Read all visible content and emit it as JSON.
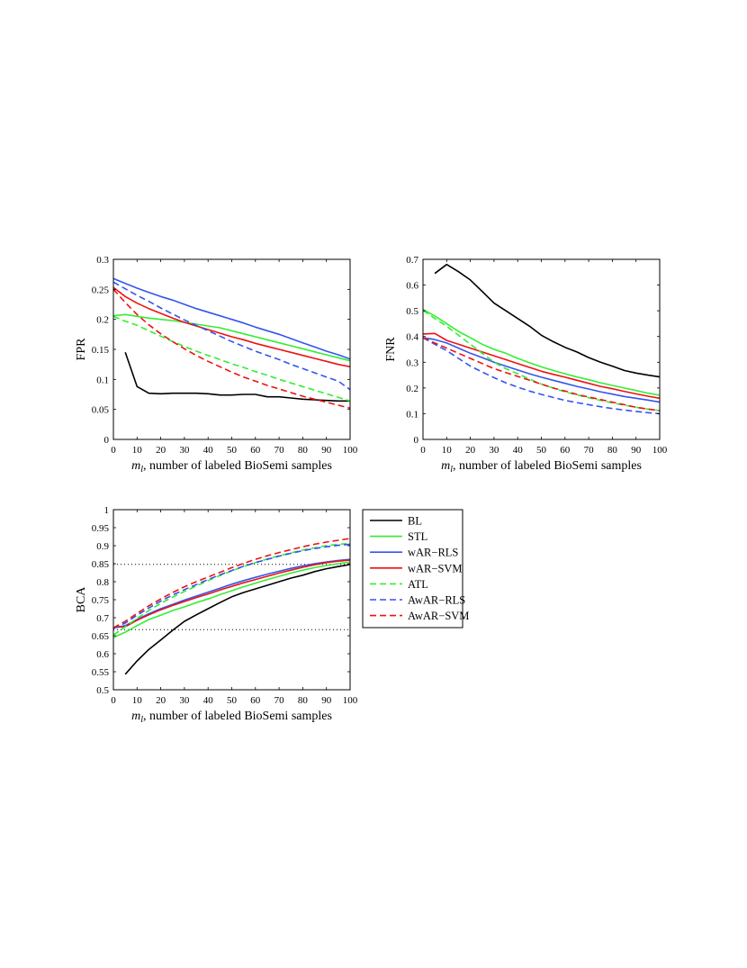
{
  "figure": {
    "colors": {
      "BL": "#000000",
      "STL": "#33ee33",
      "wAR-RLS": "#3355ee",
      "wAR-SVM": "#ee1111",
      "ATL": "#33ee33",
      "AwAR-RLS": "#3355ee",
      "AwAR-SVM": "#ee1111"
    },
    "legend": {
      "entries": [
        {
          "label": "BL",
          "style": "solid"
        },
        {
          "label": "STL",
          "style": "solid"
        },
        {
          "label": "wAR−RLS",
          "style": "solid"
        },
        {
          "label": "wAR−SVM",
          "style": "solid"
        },
        {
          "label": "ATL",
          "style": "dashed"
        },
        {
          "label": "AwAR−RLS",
          "style": "dashed"
        },
        {
          "label": "AwAR−SVM",
          "style": "dashed"
        }
      ]
    }
  },
  "chart_data": [
    {
      "type": "line",
      "title": "",
      "xlabel_var": "m",
      "xlabel_sub": "l",
      "xlabel_rest": ", number of labeled BioSemi samples",
      "ylabel": "FPR",
      "xlim": [
        0,
        100
      ],
      "ylim": [
        0,
        0.3
      ],
      "xticks": [
        0,
        10,
        20,
        30,
        40,
        50,
        60,
        70,
        80,
        90,
        100
      ],
      "yticks": [
        0,
        0.05,
        0.1,
        0.15,
        0.2,
        0.25,
        0.3
      ],
      "ytick_labels": [
        "0",
        "0.05",
        "0.1",
        "0.15",
        "0.2",
        "0.25",
        "0.3"
      ],
      "x": [
        0,
        5,
        10,
        15,
        20,
        25,
        30,
        35,
        40,
        45,
        50,
        55,
        60,
        65,
        70,
        75,
        80,
        85,
        90,
        95,
        100
      ],
      "series": [
        {
          "name": "BL",
          "key": "BL",
          "dashed": false,
          "x": [
            5,
            10,
            15,
            20,
            25,
            30,
            35,
            40,
            45,
            50,
            55,
            60,
            65,
            70,
            75,
            80,
            85,
            90,
            95,
            100
          ],
          "values": [
            0.145,
            0.088,
            0.077,
            0.076,
            0.077,
            0.077,
            0.077,
            0.076,
            0.074,
            0.074,
            0.075,
            0.075,
            0.071,
            0.071,
            0.069,
            0.067,
            0.066,
            0.065,
            0.064,
            0.064
          ]
        },
        {
          "name": "STL",
          "key": "STL",
          "dashed": false,
          "values": [
            0.206,
            0.208,
            0.205,
            0.202,
            0.2,
            0.198,
            0.195,
            0.192,
            0.189,
            0.186,
            0.181,
            0.176,
            0.171,
            0.166,
            0.161,
            0.156,
            0.151,
            0.146,
            0.141,
            0.136,
            0.131
          ]
        },
        {
          "name": "wAR-RLS",
          "key": "wAR-RLS",
          "dashed": false,
          "values": [
            0.268,
            0.26,
            0.252,
            0.245,
            0.238,
            0.232,
            0.225,
            0.218,
            0.212,
            0.206,
            0.2,
            0.194,
            0.187,
            0.181,
            0.175,
            0.168,
            0.161,
            0.154,
            0.147,
            0.141,
            0.134
          ]
        },
        {
          "name": "wAR-SVM",
          "key": "wAR-SVM",
          "dashed": false,
          "values": [
            0.253,
            0.238,
            0.227,
            0.218,
            0.21,
            0.202,
            0.195,
            0.189,
            0.183,
            0.177,
            0.171,
            0.166,
            0.16,
            0.155,
            0.15,
            0.145,
            0.14,
            0.135,
            0.13,
            0.125,
            0.121
          ]
        },
        {
          "name": "ATL",
          "key": "ATL",
          "dashed": true,
          "values": [
            0.205,
            0.197,
            0.19,
            0.181,
            0.172,
            0.163,
            0.155,
            0.147,
            0.14,
            0.133,
            0.126,
            0.12,
            0.113,
            0.107,
            0.1,
            0.094,
            0.088,
            0.082,
            0.076,
            0.07,
            0.064
          ]
        },
        {
          "name": "AwAR-RLS",
          "key": "AwAR-RLS",
          "dashed": true,
          "values": [
            0.262,
            0.251,
            0.24,
            0.23,
            0.219,
            0.209,
            0.199,
            0.19,
            0.181,
            0.172,
            0.163,
            0.155,
            0.147,
            0.14,
            0.133,
            0.125,
            0.118,
            0.111,
            0.104,
            0.097,
            0.083
          ]
        },
        {
          "name": "AwAR-SVM",
          "key": "AwAR-SVM",
          "dashed": true,
          "values": [
            0.25,
            0.228,
            0.208,
            0.191,
            0.176,
            0.163,
            0.151,
            0.14,
            0.13,
            0.121,
            0.112,
            0.104,
            0.097,
            0.09,
            0.084,
            0.078,
            0.072,
            0.067,
            0.062,
            0.057,
            0.052
          ]
        }
      ]
    },
    {
      "type": "line",
      "title": "",
      "xlabel_var": "m",
      "xlabel_sub": "l",
      "xlabel_rest": ", number of labeled BioSemi samples",
      "ylabel": "FNR",
      "xlim": [
        0,
        100
      ],
      "ylim": [
        0,
        0.7
      ],
      "xticks": [
        0,
        10,
        20,
        30,
        40,
        50,
        60,
        70,
        80,
        90,
        100
      ],
      "yticks": [
        0,
        0.1,
        0.2,
        0.3,
        0.4,
        0.5,
        0.6,
        0.7
      ],
      "ytick_labels": [
        "0",
        "0.1",
        "0.2",
        "0.3",
        "0.4",
        "0.5",
        "0.6",
        "0.7"
      ],
      "x": [
        0,
        5,
        10,
        15,
        20,
        25,
        30,
        35,
        40,
        45,
        50,
        55,
        60,
        65,
        70,
        75,
        80,
        85,
        90,
        95,
        100
      ],
      "series": [
        {
          "name": "BL",
          "key": "BL",
          "dashed": false,
          "x": [
            5,
            10,
            15,
            20,
            25,
            30,
            35,
            40,
            45,
            50,
            55,
            60,
            65,
            70,
            75,
            80,
            85,
            90,
            95,
            100
          ],
          "values": [
            0.645,
            0.68,
            0.652,
            0.62,
            0.575,
            0.53,
            0.5,
            0.47,
            0.44,
            0.405,
            0.38,
            0.358,
            0.34,
            0.318,
            0.3,
            0.285,
            0.268,
            0.258,
            0.25,
            0.243
          ]
        },
        {
          "name": "STL",
          "key": "STL",
          "dashed": false,
          "values": [
            0.505,
            0.48,
            0.45,
            0.42,
            0.395,
            0.37,
            0.35,
            0.335,
            0.315,
            0.298,
            0.282,
            0.268,
            0.255,
            0.243,
            0.232,
            0.22,
            0.21,
            0.2,
            0.19,
            0.18,
            0.172
          ]
        },
        {
          "name": "wAR-RLS",
          "key": "wAR-RLS",
          "dashed": false,
          "values": [
            0.395,
            0.388,
            0.375,
            0.355,
            0.335,
            0.318,
            0.3,
            0.285,
            0.27,
            0.255,
            0.242,
            0.23,
            0.218,
            0.206,
            0.196,
            0.185,
            0.176,
            0.167,
            0.16,
            0.153,
            0.145
          ]
        },
        {
          "name": "wAR-SVM",
          "key": "wAR-SVM",
          "dashed": false,
          "values": [
            0.41,
            0.412,
            0.385,
            0.37,
            0.355,
            0.34,
            0.325,
            0.31,
            0.295,
            0.28,
            0.265,
            0.253,
            0.242,
            0.23,
            0.218,
            0.206,
            0.197,
            0.187,
            0.177,
            0.168,
            0.16
          ]
        },
        {
          "name": "ATL",
          "key": "ATL",
          "dashed": true,
          "values": [
            0.502,
            0.47,
            0.44,
            0.405,
            0.37,
            0.335,
            0.3,
            0.275,
            0.255,
            0.235,
            0.215,
            0.2,
            0.185,
            0.173,
            0.162,
            0.152,
            0.142,
            0.133,
            0.125,
            0.118,
            0.112
          ]
        },
        {
          "name": "AwAR-RLS",
          "key": "AwAR-RLS",
          "dashed": true,
          "values": [
            0.395,
            0.37,
            0.345,
            0.315,
            0.285,
            0.262,
            0.24,
            0.22,
            0.203,
            0.188,
            0.175,
            0.163,
            0.152,
            0.143,
            0.135,
            0.127,
            0.12,
            0.114,
            0.109,
            0.104,
            0.1
          ]
        },
        {
          "name": "AwAR-SVM",
          "key": "AwAR-SVM",
          "dashed": true,
          "values": [
            0.395,
            0.375,
            0.355,
            0.335,
            0.315,
            0.295,
            0.275,
            0.26,
            0.245,
            0.23,
            0.215,
            0.2,
            0.188,
            0.175,
            0.165,
            0.155,
            0.145,
            0.135,
            0.125,
            0.118,
            0.112
          ]
        }
      ]
    },
    {
      "type": "line",
      "title": "",
      "xlabel_var": "m",
      "xlabel_sub": "l",
      "xlabel_rest": ", number of labeled BioSemi samples",
      "ylabel": "BCA",
      "xlim": [
        0,
        100
      ],
      "ylim": [
        0.5,
        1
      ],
      "xticks": [
        0,
        10,
        20,
        30,
        40,
        50,
        60,
        70,
        80,
        90,
        100
      ],
      "yticks": [
        0.5,
        0.55,
        0.6,
        0.65,
        0.7,
        0.75,
        0.8,
        0.85,
        0.9,
        0.95,
        1
      ],
      "ytick_labels": [
        "0.5",
        "0.55",
        "0.6",
        "0.65",
        "0.7",
        "0.75",
        "0.8",
        "0.85",
        "0.9",
        "0.95",
        "1"
      ],
      "hlines": [
        0.667,
        0.848
      ],
      "x": [
        0,
        5,
        10,
        15,
        20,
        25,
        30,
        35,
        40,
        45,
        50,
        55,
        60,
        65,
        70,
        75,
        80,
        85,
        90,
        95,
        100
      ],
      "series": [
        {
          "name": "BL",
          "key": "BL",
          "dashed": false,
          "x": [
            5,
            10,
            15,
            20,
            25,
            30,
            35,
            40,
            45,
            50,
            55,
            60,
            65,
            70,
            75,
            80,
            85,
            90,
            95,
            100
          ],
          "values": [
            0.543,
            0.58,
            0.612,
            0.638,
            0.665,
            0.69,
            0.708,
            0.725,
            0.742,
            0.758,
            0.77,
            0.78,
            0.79,
            0.8,
            0.81,
            0.818,
            0.828,
            0.836,
            0.842,
            0.848
          ]
        },
        {
          "name": "STL",
          "key": "STL",
          "dashed": false,
          "values": [
            0.645,
            0.66,
            0.678,
            0.695,
            0.707,
            0.72,
            0.73,
            0.742,
            0.752,
            0.764,
            0.775,
            0.786,
            0.796,
            0.806,
            0.815,
            0.824,
            0.832,
            0.839,
            0.845,
            0.85,
            0.855
          ]
        },
        {
          "name": "wAR-RLS",
          "key": "wAR-RLS",
          "dashed": false,
          "values": [
            0.672,
            0.678,
            0.695,
            0.711,
            0.725,
            0.737,
            0.749,
            0.76,
            0.771,
            0.782,
            0.793,
            0.803,
            0.812,
            0.821,
            0.829,
            0.837,
            0.844,
            0.85,
            0.855,
            0.859,
            0.862
          ]
        },
        {
          "name": "wAR-SVM",
          "key": "wAR-SVM",
          "dashed": false,
          "values": [
            0.673,
            0.675,
            0.693,
            0.708,
            0.722,
            0.734,
            0.745,
            0.756,
            0.766,
            0.777,
            0.787,
            0.797,
            0.806,
            0.815,
            0.824,
            0.832,
            0.84,
            0.847,
            0.853,
            0.857,
            0.86
          ]
        },
        {
          "name": "ATL",
          "key": "ATL",
          "dashed": true,
          "values": [
            0.652,
            0.675,
            0.698,
            0.72,
            0.74,
            0.757,
            0.773,
            0.788,
            0.803,
            0.817,
            0.83,
            0.842,
            0.853,
            0.863,
            0.872,
            0.88,
            0.888,
            0.894,
            0.9,
            0.904,
            0.906
          ]
        },
        {
          "name": "AwAR-RLS",
          "key": "AwAR-RLS",
          "dashed": true,
          "values": [
            0.67,
            0.685,
            0.707,
            0.727,
            0.746,
            0.763,
            0.778,
            0.792,
            0.806,
            0.819,
            0.831,
            0.843,
            0.853,
            0.862,
            0.871,
            0.879,
            0.886,
            0.892,
            0.897,
            0.901,
            0.904
          ]
        },
        {
          "name": "AwAR-SVM",
          "key": "AwAR-SVM",
          "dashed": true,
          "values": [
            0.672,
            0.69,
            0.712,
            0.733,
            0.752,
            0.77,
            0.786,
            0.8,
            0.813,
            0.826,
            0.839,
            0.851,
            0.862,
            0.872,
            0.881,
            0.889,
            0.897,
            0.904,
            0.91,
            0.915,
            0.92
          ]
        }
      ]
    }
  ]
}
